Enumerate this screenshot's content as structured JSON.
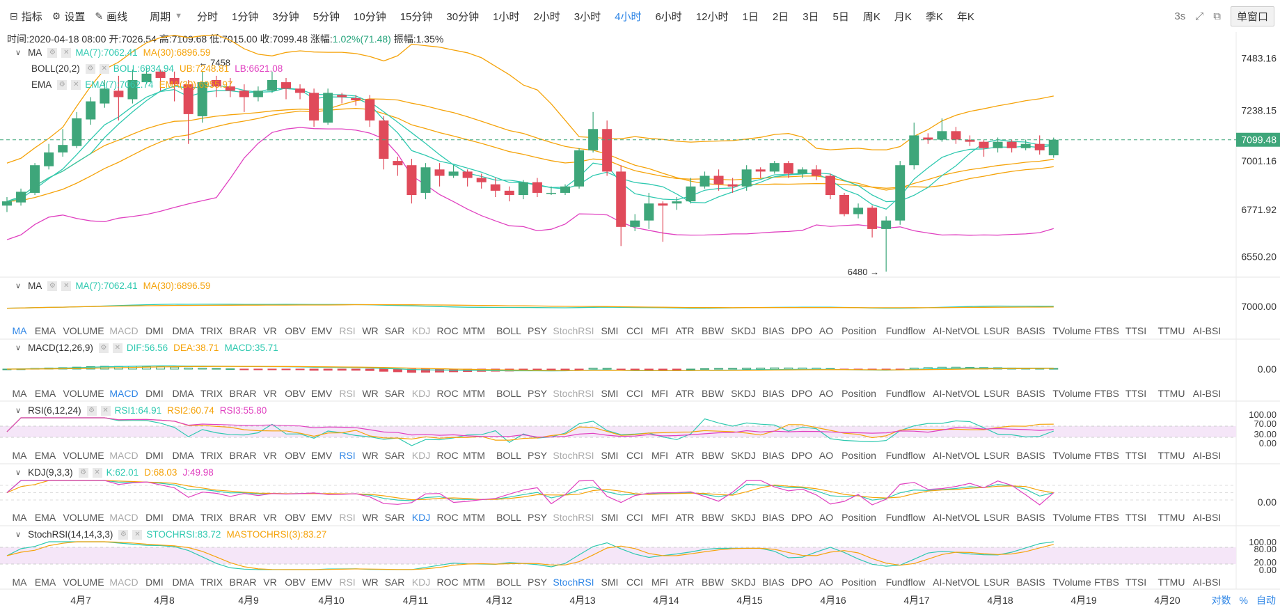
{
  "toolbar": {
    "indicators": "指标",
    "settings": "设置",
    "draw": "画线",
    "period_label": "周期",
    "periods": [
      "分时",
      "1分钟",
      "3分钟",
      "5分钟",
      "10分钟",
      "15分钟",
      "30分钟",
      "1小时",
      "2小时",
      "3小时",
      "4小时",
      "6小时",
      "12小时",
      "1日",
      "2日",
      "3日",
      "5日",
      "周K",
      "月K",
      "季K",
      "年K"
    ],
    "active_period": "4小时",
    "refresh": "3s",
    "window_mode": "单窗口"
  },
  "info": {
    "time": "时间:2020-04-18 08:00",
    "open": "开:7026.54",
    "high": "高:7109.68",
    "low": "低:7015.00",
    "close": "收:7099.48",
    "change_label": "涨幅:",
    "change": "1.02%(71.48)",
    "amplitude": "振幅:1.35%"
  },
  "colors": {
    "up": "#3ea67a",
    "down": "#e04a5a",
    "c1": "#2fc9b0",
    "c2": "#f5a30a",
    "c3": "#e040c0",
    "accent": "#2f86e6"
  },
  "main_legend": {
    "ma": {
      "name": "MA",
      "v1": "MA(7):7062.41",
      "v2": "MA(30):6896.59"
    },
    "boll": {
      "name": "BOLL(20,2)",
      "v1": "BOLL:6934.94",
      "v2": "UB:7248.81",
      "v3": "LB:6621.08"
    },
    "ema": {
      "name": "EMA",
      "v1": "EMA(7):7062.74",
      "v2": "EMA(30):6955.97"
    }
  },
  "main_axis": [
    "7483.16",
    "7238.15",
    "7001.16",
    "6771.92",
    "6550.20"
  ],
  "price_tag": "7099.48",
  "high_mark": "← 7458",
  "low_mark": "6480 →",
  "sub_panels": {
    "ma": {
      "name": "MA",
      "v1": "MA(7):7062.41",
      "v2": "MA(30):6896.59",
      "axis": [
        "7000.00"
      ]
    },
    "macd": {
      "name": "MACD(12,26,9)",
      "v1": "DIF:56.56",
      "v2": "DEA:38.71",
      "v3": "MACD:35.71",
      "axis": [
        "0.00"
      ]
    },
    "rsi": {
      "name": "RSI(6,12,24)",
      "v1": "RSI1:64.91",
      "v2": "RSI2:60.74",
      "v3": "RSI3:55.80",
      "axis": [
        "100.00",
        "70.00",
        "30.00",
        "0.00"
      ]
    },
    "kdj": {
      "name": "KDJ(9,3,3)",
      "v1": "K:62.01",
      "v2": "D:68.03",
      "v3": "J:49.98",
      "axis": [
        "0.00"
      ]
    },
    "stochrsi": {
      "name": "StochRSI(14,14,3,3)",
      "v1": "STOCHRSI:83.72",
      "v2": "MASTOCHRSI(3):83.27",
      "axis": [
        "100.00",
        "80.00",
        "20.00",
        "0.00"
      ]
    }
  },
  "indicator_tabs": [
    "MA",
    "EMA",
    "VOLUME",
    "MACD",
    "DMI",
    "DMA",
    "TRIX",
    "BRAR",
    "VR",
    "OBV",
    "EMV",
    "RSI",
    "WR",
    "SAR",
    "KDJ",
    "ROC",
    "MTM",
    "BOLL",
    "PSY",
    "StochRSI",
    "SMI",
    "CCI",
    "MFI",
    "ATR",
    "BBW",
    "SKDJ",
    "BIAS",
    "DPO",
    "AO",
    "Position",
    "Fundflow",
    "AI-NetVOL",
    "LSUR",
    "BASIS",
    "TVolume",
    "FTBS",
    "TTSI",
    "TTMU",
    "AI-BSI"
  ],
  "x_axis": [
    "4月7",
    "4月8",
    "4月9",
    "4月10",
    "4月11",
    "4月12",
    "4月13",
    "4月14",
    "4月15",
    "4月16",
    "4月17",
    "4月18",
    "4月19",
    "4月20"
  ],
  "scale_buttons": [
    "对数",
    "%",
    "自动"
  ],
  "chart_data": {
    "type": "candlestick",
    "interval": "4小时",
    "candles": [
      [
        6790,
        6810,
        6760,
        6830
      ],
      [
        6805,
        6855,
        6790,
        6870
      ],
      [
        6850,
        6980,
        6840,
        6990
      ],
      [
        6975,
        7040,
        6960,
        7080
      ],
      [
        7040,
        7075,
        7020,
        7150
      ],
      [
        7070,
        7200,
        7060,
        7230
      ],
      [
        7195,
        7280,
        7170,
        7300
      ],
      [
        7270,
        7340,
        7250,
        7380
      ],
      [
        7330,
        7300,
        7190,
        7400
      ],
      [
        7290,
        7380,
        7270,
        7430
      ],
      [
        7370,
        7410,
        7360,
        7440
      ],
      [
        7420,
        7390,
        7330,
        7430
      ],
      [
        7390,
        7360,
        7280,
        7420
      ],
      [
        7360,
        7220,
        7080,
        7380
      ],
      [
        7210,
        7370,
        7180,
        7420
      ],
      [
        7380,
        7350,
        7300,
        7400
      ],
      [
        7350,
        7330,
        7300,
        7390
      ],
      [
        7330,
        7300,
        7230,
        7360
      ],
      [
        7300,
        7330,
        7280,
        7350
      ],
      [
        7330,
        7380,
        7320,
        7420
      ],
      [
        7370,
        7340,
        7290,
        7390
      ],
      [
        7340,
        7320,
        7290,
        7360
      ],
      [
        7320,
        7190,
        7160,
        7340
      ],
      [
        7180,
        7320,
        7170,
        7340
      ],
      [
        7310,
        7300,
        7270,
        7320
      ],
      [
        7295,
        7285,
        7260,
        7310
      ],
      [
        7290,
        7190,
        7160,
        7310
      ],
      [
        7190,
        7010,
        6960,
        7210
      ],
      [
        7000,
        6980,
        6930,
        7020
      ],
      [
        6980,
        6840,
        6800,
        7010
      ],
      [
        6850,
        6970,
        6820,
        6990
      ],
      [
        6960,
        6930,
        6880,
        6990
      ],
      [
        6930,
        6950,
        6920,
        6980
      ],
      [
        6950,
        6920,
        6880,
        6960
      ],
      [
        6920,
        6900,
        6870,
        6940
      ],
      [
        6890,
        6860,
        6830,
        6920
      ],
      [
        6860,
        6840,
        6810,
        6880
      ],
      [
        6840,
        6900,
        6820,
        6910
      ],
      [
        6900,
        6850,
        6830,
        6920
      ],
      [
        6850,
        6850,
        6840,
        6880
      ],
      [
        6850,
        6880,
        6840,
        6890
      ],
      [
        6880,
        7050,
        6870,
        7060
      ],
      [
        7050,
        7150,
        7040,
        7230
      ],
      [
        7150,
        6950,
        6930,
        7190
      ],
      [
        6950,
        6690,
        6600,
        6980
      ],
      [
        6690,
        6720,
        6670,
        6750
      ],
      [
        6720,
        6800,
        6680,
        6850
      ],
      [
        6800,
        6790,
        6620,
        6810
      ],
      [
        6800,
        6810,
        6770,
        6830
      ],
      [
        6810,
        6880,
        6800,
        6920
      ],
      [
        6880,
        6930,
        6870,
        6950
      ],
      [
        6930,
        6890,
        6860,
        6960
      ],
      [
        6890,
        6880,
        6850,
        6920
      ],
      [
        6880,
        6960,
        6860,
        6980
      ],
      [
        6960,
        6950,
        6920,
        6970
      ],
      [
        6950,
        6990,
        6940,
        7000
      ],
      [
        6990,
        6940,
        6920,
        7000
      ],
      [
        6940,
        6960,
        6920,
        6970
      ],
      [
        6960,
        6930,
        6910,
        6980
      ],
      [
        6930,
        6840,
        6820,
        6940
      ],
      [
        6840,
        6750,
        6740,
        6850
      ],
      [
        6750,
        6780,
        6730,
        6800
      ],
      [
        6780,
        6680,
        6640,
        6790
      ],
      [
        6680,
        6720,
        6480,
        6740
      ],
      [
        6720,
        6980,
        6700,
        7000
      ],
      [
        6980,
        7120,
        6960,
        7180
      ],
      [
        7110,
        7100,
        7080,
        7130
      ],
      [
        7100,
        7140,
        7090,
        7200
      ],
      [
        7140,
        7100,
        7080,
        7160
      ],
      [
        7100,
        7090,
        7070,
        7120
      ],
      [
        7090,
        7060,
        7020,
        7100
      ],
      [
        7060,
        7090,
        7040,
        7110
      ],
      [
        7090,
        7060,
        7040,
        7100
      ],
      [
        7060,
        7080,
        7050,
        7100
      ],
      [
        7080,
        7050,
        7030,
        7120
      ],
      [
        7026.54,
        7099.48,
        7015.0,
        7109.68
      ]
    ],
    "ylim": [
      6480,
      7560
    ]
  }
}
